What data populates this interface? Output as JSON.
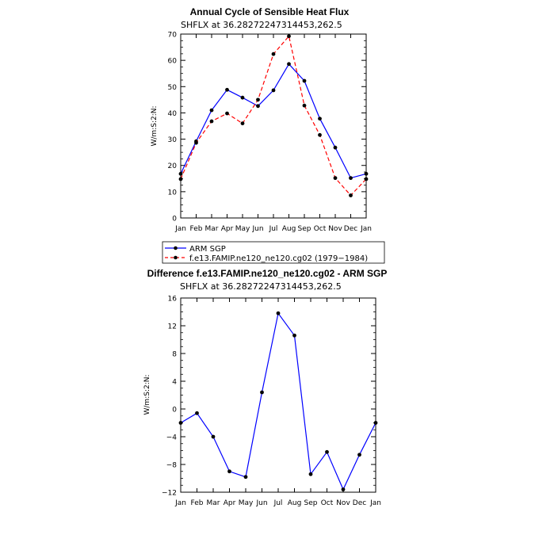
{
  "chart_data": [
    {
      "type": "line",
      "title": "Annual Cycle of Sensible Heat Flux",
      "subtitle": "SHFLX at 36.28272247314453,262.5",
      "xlabel": "",
      "ylabel": "W/m:S:2:N:",
      "categories": [
        "Jan",
        "Feb",
        "Mar",
        "Apr",
        "May",
        "Jun",
        "Jul",
        "Aug",
        "Sep",
        "Oct",
        "Nov",
        "Dec",
        "Jan"
      ],
      "ylim": [
        0,
        70
      ],
      "yticks": [
        0,
        10,
        20,
        30,
        40,
        50,
        60,
        70
      ],
      "series": [
        {
          "name": "ARM SGP",
          "color": "#0000ff",
          "dashed": false,
          "values": [
            16.8,
            29.2,
            41.0,
            48.8,
            45.8,
            42.6,
            48.6,
            58.6,
            52.2,
            37.8,
            26.8,
            15.2,
            16.8
          ]
        },
        {
          "name": "f.e13.FAMIP.ne120_ne120.cg02 (1979-1984)",
          "color": "#ff0000",
          "dashed": true,
          "values": [
            14.8,
            28.6,
            36.8,
            39.8,
            36.0,
            45.0,
            62.4,
            69.2,
            42.8,
            31.6,
            15.2,
            8.6,
            14.8
          ]
        }
      ],
      "legend": {
        "placement": "below",
        "entries": [
          "ARM SGP",
          "f.e13.FAMIP.ne120_ne120.cg02 (1979−1984)"
        ]
      }
    },
    {
      "type": "line",
      "title": "Difference f.e13.FAMIP.ne120_ne120.cg02 - ARM SGP",
      "subtitle": "SHFLX at 36.28272247314453,262.5",
      "xlabel": "",
      "ylabel": "W/m:S:2:N:",
      "categories": [
        "Jan",
        "Feb",
        "Mar",
        "Apr",
        "May",
        "Jun",
        "Jul",
        "Aug",
        "Sep",
        "Oct",
        "Nov",
        "Dec",
        "Jan"
      ],
      "ylim": [
        -12,
        16
      ],
      "yticks": [
        -12,
        -8,
        -4,
        0,
        4,
        8,
        12,
        16
      ],
      "ytick_labels": [
        "−12",
        "−8",
        "−4",
        "0",
        "4",
        "8",
        "12",
        "16"
      ],
      "series": [
        {
          "name": "Difference",
          "color": "#0000ff",
          "dashed": false,
          "values": [
            -2.0,
            -0.6,
            -4.0,
            -9.0,
            -9.8,
            2.4,
            13.8,
            10.6,
            -9.4,
            -6.2,
            -11.6,
            -6.6,
            -2.0
          ]
        }
      ]
    }
  ]
}
